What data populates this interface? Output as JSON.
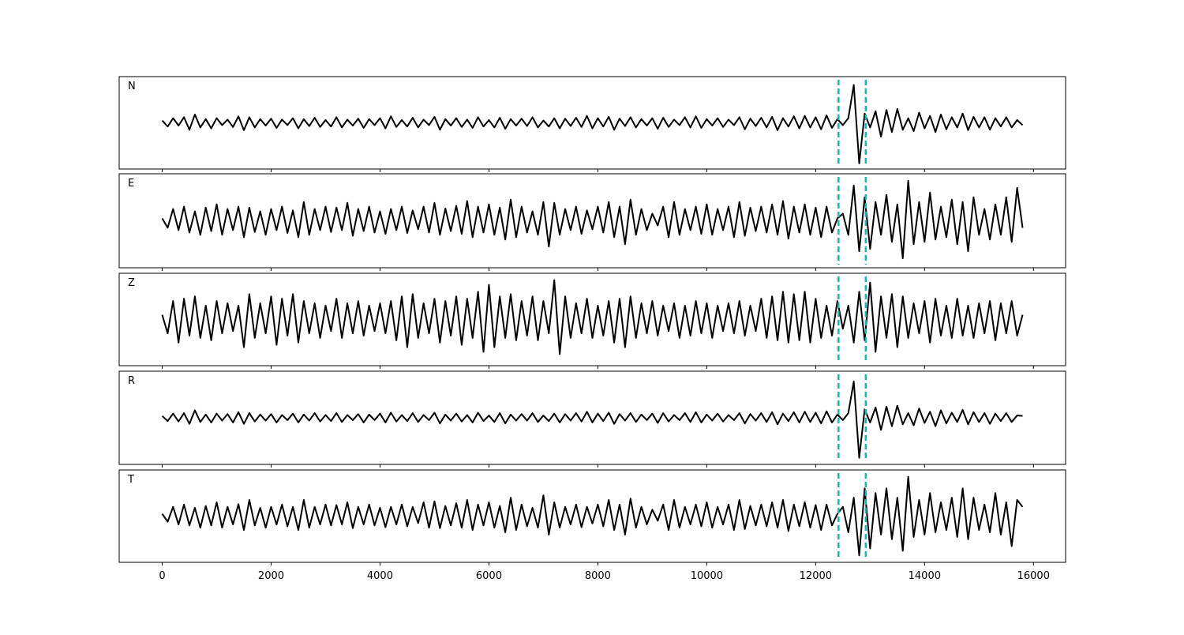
{
  "chart_data": {
    "type": "line",
    "x": [
      0,
      100,
      200,
      300,
      400,
      500,
      600,
      700,
      800,
      900,
      1000,
      1100,
      1200,
      1300,
      1400,
      1500,
      1600,
      1700,
      1800,
      1900,
      2000,
      2100,
      2200,
      2300,
      2400,
      2500,
      2600,
      2700,
      2800,
      2900,
      3000,
      3100,
      3200,
      3300,
      3400,
      3500,
      3600,
      3700,
      3800,
      3900,
      4000,
      4100,
      4200,
      4300,
      4400,
      4500,
      4600,
      4700,
      4800,
      4900,
      5000,
      5100,
      5200,
      5300,
      5400,
      5500,
      5600,
      5700,
      5800,
      5900,
      6000,
      6100,
      6200,
      6300,
      6400,
      6500,
      6600,
      6700,
      6800,
      6900,
      7000,
      7100,
      7200,
      7300,
      7400,
      7500,
      7600,
      7700,
      7800,
      7900,
      8000,
      8100,
      8200,
      8300,
      8400,
      8500,
      8600,
      8700,
      8800,
      8900,
      9000,
      9100,
      9200,
      9300,
      9400,
      9500,
      9600,
      9700,
      9800,
      9900,
      10000,
      10100,
      10200,
      10300,
      10400,
      10500,
      10600,
      10700,
      10800,
      10900,
      11000,
      11100,
      11200,
      11300,
      11400,
      11500,
      11600,
      11700,
      11800,
      11900,
      12000,
      12100,
      12200,
      12300,
      12400,
      12500,
      12600,
      12700,
      12800,
      12900,
      13000,
      13100,
      13200,
      13300,
      13400,
      13500,
      13600,
      13700,
      13800,
      13900,
      14000,
      14100,
      14200,
      14300,
      14400,
      14500,
      14600,
      14700,
      14800,
      14900,
      15000,
      15100,
      15200,
      15300,
      15400,
      15500,
      15600,
      15700,
      15800
    ],
    "series": [
      {
        "name": "N",
        "color": "#000000",
        "values": [
          0.05,
          -0.08,
          0.1,
          -0.06,
          0.12,
          -0.15,
          0.18,
          -0.1,
          0.08,
          -0.12,
          0.1,
          -0.05,
          0.07,
          -0.09,
          0.14,
          -0.16,
          0.12,
          -0.1,
          0.08,
          -0.06,
          0.09,
          -0.11,
          0.07,
          -0.05,
          0.1,
          -0.12,
          0.08,
          -0.07,
          0.11,
          -0.09,
          0.06,
          -0.08,
          0.12,
          -0.1,
          0.07,
          -0.06,
          0.09,
          -0.11,
          0.08,
          -0.05,
          0.1,
          -0.12,
          0.14,
          -0.09,
          0.06,
          -0.08,
          0.11,
          -0.1,
          0.07,
          -0.05,
          0.13,
          -0.15,
          0.08,
          -0.06,
          0.1,
          -0.09,
          0.07,
          -0.11,
          0.12,
          -0.08,
          0.06,
          -0.1,
          0.11,
          -0.13,
          0.08,
          -0.06,
          0.09,
          -0.07,
          0.12,
          -0.1,
          0.05,
          -0.08,
          0.1,
          -0.12,
          0.09,
          -0.07,
          0.11,
          -0.09,
          0.15,
          -0.12,
          0.1,
          -0.08,
          0.13,
          -0.15,
          0.09,
          -0.07,
          0.12,
          -0.1,
          0.08,
          -0.06,
          0.1,
          -0.13,
          0.11,
          -0.09,
          0.07,
          -0.05,
          0.12,
          -0.1,
          0.14,
          -0.11,
          0.08,
          -0.06,
          0.1,
          -0.09,
          0.07,
          -0.05,
          0.12,
          -0.14,
          0.09,
          -0.07,
          0.11,
          -0.1,
          0.13,
          -0.16,
          0.1,
          -0.08,
          0.14,
          -0.12,
          0.15,
          -0.1,
          0.12,
          -0.14,
          0.16,
          -0.11,
          0.08,
          -0.05,
          0.1,
          0.82,
          -0.88,
          0.2,
          -0.1,
          0.25,
          -0.3,
          0.28,
          -0.2,
          0.3,
          -0.15,
          0.1,
          -0.18,
          0.22,
          -0.12,
          0.15,
          -0.2,
          0.18,
          -0.14,
          0.12,
          -0.1,
          0.2,
          -0.16,
          0.13,
          -0.1,
          0.12,
          -0.15,
          0.1,
          -0.08,
          0.12,
          -0.1,
          0.06,
          -0.05
        ]
      },
      {
        "name": "E",
        "color": "#000000",
        "values": [
          0.05,
          -0.15,
          0.25,
          -0.2,
          0.3,
          -0.25,
          0.2,
          -0.3,
          0.28,
          -0.22,
          0.35,
          -0.3,
          0.25,
          -0.2,
          0.3,
          -0.35,
          0.28,
          -0.24,
          0.2,
          -0.3,
          0.25,
          -0.2,
          0.3,
          -0.26,
          0.22,
          -0.35,
          0.4,
          -0.3,
          0.25,
          -0.2,
          0.3,
          -0.24,
          0.28,
          -0.2,
          0.38,
          -0.32,
          0.25,
          -0.22,
          0.3,
          -0.25,
          0.2,
          -0.28,
          0.25,
          -0.2,
          0.3,
          -0.26,
          0.22,
          -0.18,
          0.3,
          -0.25,
          0.38,
          -0.3,
          0.26,
          -0.22,
          0.32,
          -0.28,
          0.42,
          -0.35,
          0.3,
          -0.25,
          0.35,
          -0.3,
          0.28,
          -0.4,
          0.45,
          -0.35,
          0.3,
          -0.25,
          0.2,
          -0.3,
          0.4,
          -0.55,
          0.38,
          -0.3,
          0.25,
          -0.2,
          0.3,
          -0.28,
          0.22,
          -0.18,
          0.3,
          -0.25,
          0.4,
          -0.35,
          0.3,
          -0.5,
          0.45,
          -0.3,
          0.25,
          -0.2,
          0.15,
          -0.1,
          0.3,
          -0.35,
          0.4,
          -0.3,
          0.25,
          -0.2,
          0.3,
          -0.28,
          0.35,
          -0.3,
          0.25,
          -0.2,
          0.3,
          -0.35,
          0.4,
          -0.32,
          0.28,
          -0.22,
          0.3,
          -0.25,
          0.35,
          -0.3,
          0.42,
          -0.38,
          0.3,
          -0.25,
          0.35,
          -0.3,
          0.28,
          -0.35,
          0.3,
          -0.25,
          0.05,
          0.15,
          -0.3,
          0.75,
          -0.65,
          0.5,
          -0.6,
          0.4,
          -0.3,
          0.55,
          -0.45,
          0.35,
          -0.8,
          0.85,
          -0.5,
          0.4,
          -0.45,
          0.6,
          -0.4,
          0.3,
          -0.35,
          0.45,
          -0.5,
          0.4,
          -0.65,
          0.5,
          -0.3,
          0.25,
          -0.4,
          0.35,
          -0.3,
          0.5,
          -0.45,
          0.7,
          -0.15
        ]
      },
      {
        "name": "Z",
        "color": "#000000",
        "values": [
          0.1,
          -0.3,
          0.4,
          -0.5,
          0.45,
          -0.35,
          0.5,
          -0.4,
          0.3,
          -0.45,
          0.4,
          -0.3,
          0.35,
          -0.25,
          0.3,
          -0.6,
          0.55,
          -0.4,
          0.35,
          -0.3,
          0.5,
          -0.55,
          0.45,
          -0.35,
          0.55,
          -0.5,
          0.4,
          -0.3,
          0.35,
          -0.4,
          0.3,
          -0.25,
          0.45,
          -0.4,
          0.35,
          -0.3,
          0.4,
          -0.35,
          0.3,
          -0.25,
          0.35,
          -0.3,
          0.4,
          -0.45,
          0.5,
          -0.6,
          0.55,
          -0.4,
          0.35,
          -0.3,
          0.45,
          -0.5,
          0.4,
          -0.35,
          0.5,
          -0.55,
          0.45,
          -0.4,
          0.6,
          -0.7,
          0.75,
          -0.6,
          0.5,
          -0.4,
          0.55,
          -0.45,
          0.4,
          -0.35,
          0.5,
          -0.45,
          0.4,
          -0.3,
          0.85,
          -0.75,
          0.5,
          -0.4,
          0.35,
          -0.3,
          0.45,
          -0.4,
          0.3,
          -0.35,
          0.4,
          -0.5,
          0.45,
          -0.6,
          0.5,
          -0.4,
          0.35,
          -0.3,
          0.4,
          -0.35,
          0.3,
          -0.25,
          0.35,
          -0.4,
          0.3,
          -0.35,
          0.4,
          -0.3,
          0.35,
          -0.4,
          0.3,
          -0.25,
          0.35,
          -0.3,
          0.4,
          -0.35,
          0.3,
          -0.25,
          0.45,
          -0.4,
          0.5,
          -0.45,
          0.6,
          -0.5,
          0.55,
          -0.45,
          0.6,
          -0.5,
          0.45,
          -0.4,
          0.3,
          -0.35,
          0.4,
          -0.2,
          0.3,
          -0.5,
          0.6,
          -0.45,
          0.8,
          -0.7,
          0.5,
          -0.4,
          0.55,
          -0.6,
          0.5,
          -0.4,
          0.35,
          -0.3,
          0.4,
          -0.5,
          0.45,
          -0.35,
          0.3,
          -0.4,
          0.45,
          -0.35,
          0.3,
          -0.4,
          0.35,
          -0.3,
          0.4,
          -0.45,
          0.35,
          -0.3,
          0.4,
          -0.35,
          0.1
        ]
      },
      {
        "name": "R",
        "color": "#000000",
        "values": [
          0.04,
          -0.07,
          0.09,
          -0.08,
          0.1,
          -0.13,
          0.16,
          -0.09,
          0.07,
          -0.1,
          0.09,
          -0.06,
          0.08,
          -0.1,
          0.12,
          -0.13,
          0.1,
          -0.08,
          0.07,
          -0.06,
          0.08,
          -0.1,
          0.06,
          -0.05,
          0.09,
          -0.1,
          0.07,
          -0.06,
          0.1,
          -0.08,
          0.06,
          -0.07,
          0.1,
          -0.09,
          0.06,
          -0.05,
          0.08,
          -0.1,
          0.07,
          -0.05,
          0.09,
          -0.1,
          0.11,
          -0.08,
          0.06,
          -0.07,
          0.1,
          -0.09,
          0.06,
          -0.05,
          0.11,
          -0.12,
          0.07,
          -0.06,
          0.09,
          -0.08,
          0.06,
          -0.1,
          0.11,
          -0.07,
          0.05,
          -0.09,
          0.1,
          -0.12,
          0.07,
          -0.06,
          0.08,
          -0.06,
          0.1,
          -0.09,
          0.05,
          -0.07,
          0.09,
          -0.1,
          0.08,
          -0.06,
          0.1,
          -0.08,
          0.13,
          -0.1,
          0.09,
          -0.07,
          0.11,
          -0.13,
          0.08,
          -0.06,
          0.1,
          -0.09,
          0.07,
          -0.05,
          0.09,
          -0.11,
          0.1,
          -0.08,
          0.06,
          -0.05,
          0.1,
          -0.09,
          0.12,
          -0.1,
          0.07,
          -0.06,
          0.09,
          -0.08,
          0.06,
          -0.05,
          0.1,
          -0.12,
          0.08,
          -0.06,
          0.1,
          -0.09,
          0.12,
          -0.14,
          0.09,
          -0.07,
          0.12,
          -0.1,
          0.13,
          -0.09,
          0.11,
          -0.12,
          0.14,
          -0.1,
          0.07,
          -0.05,
          0.1,
          0.78,
          -0.86,
          0.18,
          -0.1,
          0.22,
          -0.26,
          0.24,
          -0.18,
          0.26,
          -0.14,
          0.1,
          -0.16,
          0.2,
          -0.11,
          0.13,
          -0.18,
          0.16,
          -0.12,
          0.11,
          -0.09,
          0.17,
          -0.14,
          0.12,
          -0.09,
          0.1,
          -0.13,
          0.09,
          -0.07,
          0.1,
          -0.09,
          0.05,
          0.04
        ]
      },
      {
        "name": "T",
        "color": "#000000",
        "values": [
          0.05,
          -0.12,
          0.2,
          -0.18,
          0.25,
          -0.2,
          0.18,
          -0.25,
          0.22,
          -0.2,
          0.3,
          -0.25,
          0.2,
          -0.18,
          0.26,
          -0.3,
          0.35,
          -0.2,
          0.18,
          -0.25,
          0.2,
          -0.18,
          0.25,
          -0.22,
          0.2,
          -0.3,
          0.35,
          -0.25,
          0.2,
          -0.18,
          0.25,
          -0.2,
          0.24,
          -0.18,
          0.3,
          -0.26,
          0.2,
          -0.18,
          0.25,
          -0.2,
          0.18,
          -0.24,
          0.2,
          -0.18,
          0.25,
          -0.22,
          0.2,
          -0.15,
          0.3,
          -0.25,
          0.32,
          -0.26,
          0.22,
          -0.2,
          0.28,
          -0.25,
          0.35,
          -0.3,
          0.25,
          -0.2,
          0.3,
          -0.25,
          0.22,
          -0.35,
          0.4,
          -0.3,
          0.25,
          -0.22,
          0.18,
          -0.25,
          0.45,
          -0.4,
          0.3,
          -0.25,
          0.2,
          -0.18,
          0.25,
          -0.24,
          0.2,
          -0.16,
          0.25,
          -0.22,
          0.35,
          -0.3,
          0.25,
          -0.4,
          0.38,
          -0.25,
          0.2,
          -0.18,
          0.14,
          -0.1,
          0.25,
          -0.3,
          0.35,
          -0.25,
          0.2,
          -0.18,
          0.25,
          -0.22,
          0.3,
          -0.25,
          0.2,
          -0.18,
          0.25,
          -0.3,
          0.35,
          -0.28,
          0.22,
          -0.2,
          0.25,
          -0.22,
          0.3,
          -0.25,
          0.35,
          -0.32,
          0.25,
          -0.22,
          0.3,
          -0.25,
          0.24,
          -0.3,
          0.25,
          -0.2,
          0.05,
          0.2,
          -0.35,
          0.4,
          -0.85,
          0.6,
          -0.7,
          0.5,
          -0.4,
          0.6,
          -0.5,
          0.4,
          -0.75,
          0.85,
          -0.45,
          0.35,
          -0.4,
          0.5,
          -0.35,
          0.3,
          -0.3,
          0.4,
          -0.45,
          0.6,
          -0.5,
          0.4,
          -0.3,
          0.25,
          -0.35,
          0.5,
          -0.4,
          0.3,
          -0.65,
          0.35,
          0.2
        ]
      }
    ],
    "xlim": [
      -790,
      16590
    ],
    "xticks": [
      0,
      2000,
      4000,
      6000,
      8000,
      10000,
      12000,
      14000,
      16000
    ],
    "ylim": [
      -1,
      1
    ],
    "vlines": {
      "values": [
        12420,
        12920
      ],
      "color": "#00bfbf"
    }
  }
}
